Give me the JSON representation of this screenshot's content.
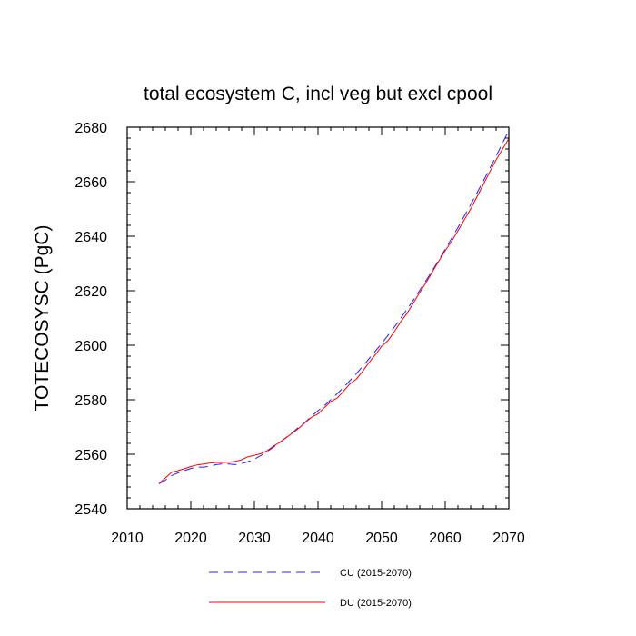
{
  "chart_data": {
    "type": "line",
    "title": "total ecosystem C, incl veg but excl cpool",
    "xlabel": "",
    "ylabel": "TOTECOSYSC  (PgC)",
    "xlim": [
      2010,
      2070
    ],
    "ylim": [
      2540,
      2680
    ],
    "xticks": [
      2010,
      2020,
      2030,
      2040,
      2050,
      2060,
      2070
    ],
    "yticks": [
      2540,
      2560,
      2580,
      2600,
      2620,
      2640,
      2660,
      2680
    ],
    "xtick_labels": [
      "2010",
      "2020",
      "2030",
      "2040",
      "2050",
      "2060",
      "2070"
    ],
    "ytick_labels": [
      "2540",
      "2560",
      "2580",
      "2600",
      "2620",
      "2640",
      "2660",
      "2680"
    ],
    "grid": false,
    "legend_position": "bottom",
    "series": [
      {
        "name": "CU (2015-2070)",
        "color": "#2020ff",
        "style": "dashed",
        "x": [
          2015,
          2016,
          2017,
          2018,
          2019,
          2020,
          2021,
          2022,
          2023,
          2024,
          2025,
          2026,
          2027,
          2028,
          2029,
          2030,
          2031,
          2032,
          2033,
          2034,
          2035,
          2036,
          2037,
          2038,
          2039,
          2040,
          2041,
          2042,
          2043,
          2044,
          2045,
          2046,
          2047,
          2048,
          2049,
          2050,
          2051,
          2052,
          2053,
          2054,
          2055,
          2056,
          2057,
          2058,
          2059,
          2060,
          2061,
          2062,
          2063,
          2064,
          2065,
          2066,
          2067,
          2068,
          2069,
          2070
        ],
        "values": [
          2549.2,
          2550.5,
          2552.2,
          2553.2,
          2554.0,
          2554.8,
          2555.3,
          2555.3,
          2555.6,
          2556.2,
          2556.5,
          2556.4,
          2556.2,
          2556.6,
          2557.3,
          2558.2,
          2559.5,
          2561.0,
          2562.6,
          2564.3,
          2566.2,
          2568.0,
          2570.0,
          2571.8,
          2574.0,
          2576.0,
          2577.8,
          2580.0,
          2582.2,
          2584.5,
          2587.0,
          2589.5,
          2592.2,
          2595.0,
          2597.8,
          2600.6,
          2603.6,
          2606.7,
          2609.9,
          2613.2,
          2616.6,
          2620.2,
          2623.8,
          2627.5,
          2631.3,
          2635.2,
          2639.2,
          2643.2,
          2647.4,
          2651.6,
          2655.9,
          2660.3,
          2664.8,
          2669.4,
          2674.1,
          2678.8
        ]
      },
      {
        "name": "DU (2015-2070)",
        "color": "#ff0000",
        "style": "solid",
        "x": [
          2015,
          2016,
          2017,
          2018,
          2019,
          2020,
          2021,
          2022,
          2023,
          2024,
          2025,
          2026,
          2027,
          2028,
          2029,
          2030,
          2031,
          2032,
          2033,
          2034,
          2035,
          2036,
          2037,
          2038,
          2039,
          2040,
          2041,
          2042,
          2043,
          2044,
          2045,
          2046,
          2047,
          2048,
          2049,
          2050,
          2051,
          2052,
          2053,
          2054,
          2055,
          2056,
          2057,
          2058,
          2059,
          2060,
          2061,
          2062,
          2063,
          2064,
          2065,
          2066,
          2067,
          2068,
          2069,
          2070
        ],
        "values": [
          2549.3,
          2551.3,
          2553.4,
          2554.0,
          2554.7,
          2555.5,
          2556.1,
          2556.4,
          2556.8,
          2557.0,
          2557.0,
          2557.1,
          2557.4,
          2558.0,
          2559.1,
          2559.6,
          2560.2,
          2561.3,
          2563.0,
          2564.4,
          2566.1,
          2567.8,
          2569.6,
          2571.7,
          2573.6,
          2574.8,
          2577.1,
          2579.3,
          2580.6,
          2583.1,
          2585.8,
          2587.5,
          2590.4,
          2593.6,
          2596.5,
          2599.6,
          2601.7,
          2605.0,
          2608.6,
          2611.7,
          2615.5,
          2619.4,
          2623.0,
          2627.0,
          2630.9,
          2634.7,
          2638.1,
          2642.0,
          2646.0,
          2650.0,
          2654.5,
          2659.0,
          2663.6,
          2668.0,
          2671.9,
          2675.8
        ]
      }
    ],
    "legend": [
      {
        "label": "CU (2015-2070)",
        "color": "#2020ff",
        "style": "dashed"
      },
      {
        "label": "DU (2015-2070)",
        "color": "#ff0000",
        "style": "solid"
      }
    ]
  }
}
